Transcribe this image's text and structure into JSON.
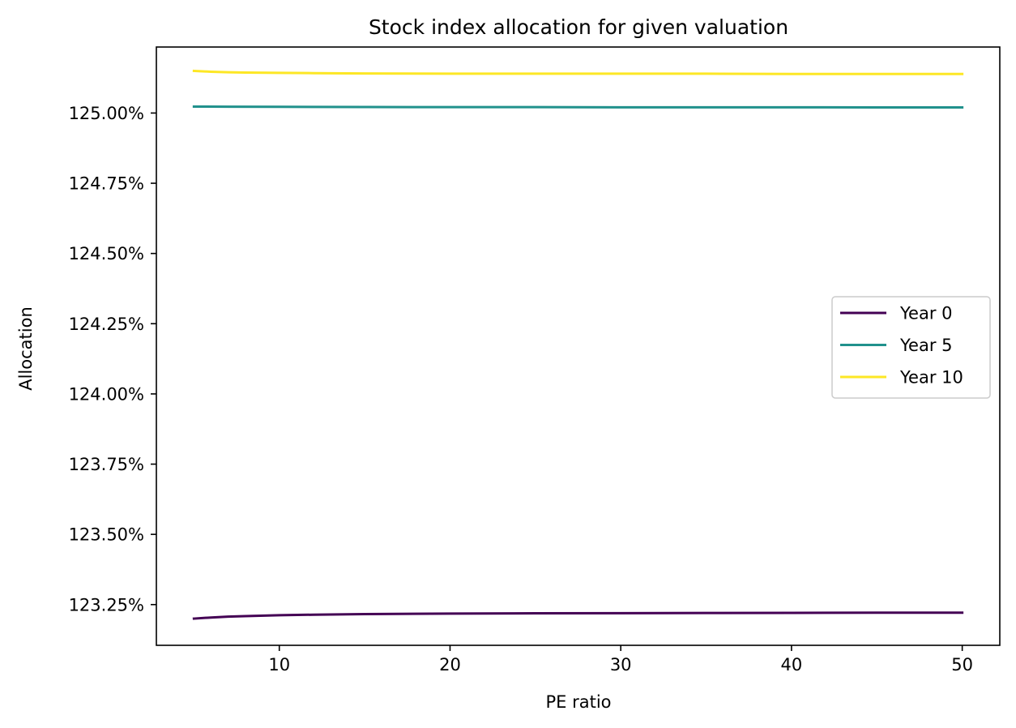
{
  "chart_data": {
    "type": "line",
    "title": "Stock index allocation for given valuation",
    "xlabel": "PE ratio",
    "ylabel": "Allocation",
    "xlim": [
      2.8,
      52.2
    ],
    "ylim": [
      123.105,
      125.235
    ],
    "x_ticks": [
      10,
      20,
      30,
      40,
      50
    ],
    "x_tick_labels": [
      "10",
      "20",
      "30",
      "40",
      "50"
    ],
    "y_ticks": [
      123.25,
      123.5,
      123.75,
      124.0,
      124.25,
      124.5,
      124.75,
      125.0
    ],
    "y_tick_labels": [
      "123.25%",
      "123.50%",
      "123.75%",
      "124.00%",
      "124.25%",
      "124.50%",
      "124.75%",
      "125.00%"
    ],
    "grid": false,
    "legend_position": "right",
    "series": [
      {
        "name": "Year 0",
        "color": "#440154",
        "x": [
          5,
          6,
          7,
          8,
          10,
          12,
          15,
          20,
          25,
          30,
          35,
          40,
          45,
          50
        ],
        "values": [
          123.2,
          123.204,
          123.207,
          123.209,
          123.212,
          123.214,
          123.216,
          123.218,
          123.219,
          123.2195,
          123.22,
          123.2205,
          123.221,
          123.221
        ]
      },
      {
        "name": "Year 5",
        "color": "#21918c",
        "x": [
          5,
          7,
          10,
          15,
          20,
          25,
          30,
          35,
          40,
          45,
          50
        ],
        "values": [
          125.023,
          125.0225,
          125.022,
          125.0215,
          125.021,
          125.021,
          125.0205,
          125.0205,
          125.0205,
          125.02,
          125.02
        ]
      },
      {
        "name": "Year 10",
        "color": "#fde725",
        "x": [
          5,
          6,
          7,
          8,
          10,
          12,
          15,
          20,
          25,
          30,
          35,
          40,
          45,
          50
        ],
        "values": [
          125.15,
          125.147,
          125.145,
          125.144,
          125.143,
          125.142,
          125.141,
          125.14,
          125.14,
          125.14,
          125.14,
          125.139,
          125.139,
          125.139
        ]
      }
    ]
  }
}
